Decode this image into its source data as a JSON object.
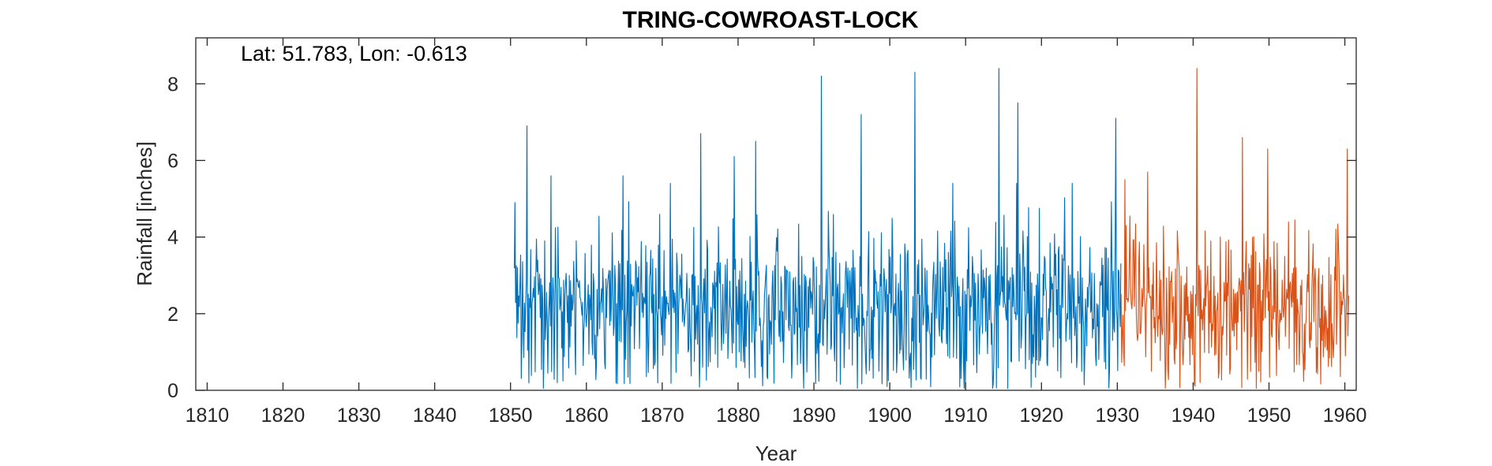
{
  "chart_data": {
    "type": "line",
    "title": "TRING-COWROAST-LOCK",
    "annotation": "Lat: 51.783, Lon: -0.613",
    "xlabel": "Year",
    "ylabel": "Rainfall [inches]",
    "xlim": [
      1808.5,
      1961.5
    ],
    "ylim": [
      0,
      9.2
    ],
    "xticks": [
      1810,
      1820,
      1830,
      1840,
      1850,
      1860,
      1870,
      1880,
      1890,
      1900,
      1910,
      1920,
      1930,
      1940,
      1950,
      1960
    ],
    "yticks": [
      0,
      2,
      4,
      6,
      8
    ],
    "grid": false,
    "legend": "none",
    "series": [
      {
        "color": "#0072BD",
        "x_start": 1850.5,
        "x_end": 1930.5,
        "step": 0.0833,
        "peaks": [
          {
            "x": 1850.6,
            "y": 4.9
          },
          {
            "x": 1852.2,
            "y": 6.9
          },
          {
            "x": 1855.3,
            "y": 5.6
          },
          {
            "x": 1864.8,
            "y": 5.6
          },
          {
            "x": 1875.1,
            "y": 6.7
          },
          {
            "x": 1879.5,
            "y": 6.1
          },
          {
            "x": 1882.3,
            "y": 6.5
          },
          {
            "x": 1891.0,
            "y": 8.2
          },
          {
            "x": 1896.2,
            "y": 7.2
          },
          {
            "x": 1903.3,
            "y": 8.3
          },
          {
            "x": 1914.4,
            "y": 8.4
          },
          {
            "x": 1916.9,
            "y": 7.5
          },
          {
            "x": 1929.8,
            "y": 7.1
          }
        ],
        "y_range": [
          0.0,
          8.4
        ]
      },
      {
        "color": "#D95319",
        "x_start": 1930.5,
        "x_end": 1960.5,
        "step": 0.0833,
        "peaks": [
          {
            "x": 1931.0,
            "y": 5.5
          },
          {
            "x": 1934.0,
            "y": 5.7
          },
          {
            "x": 1940.5,
            "y": 8.4
          },
          {
            "x": 1946.5,
            "y": 6.6
          },
          {
            "x": 1949.8,
            "y": 6.3
          },
          {
            "x": 1960.3,
            "y": 6.3
          }
        ],
        "y_range": [
          0.0,
          8.4
        ]
      }
    ]
  }
}
